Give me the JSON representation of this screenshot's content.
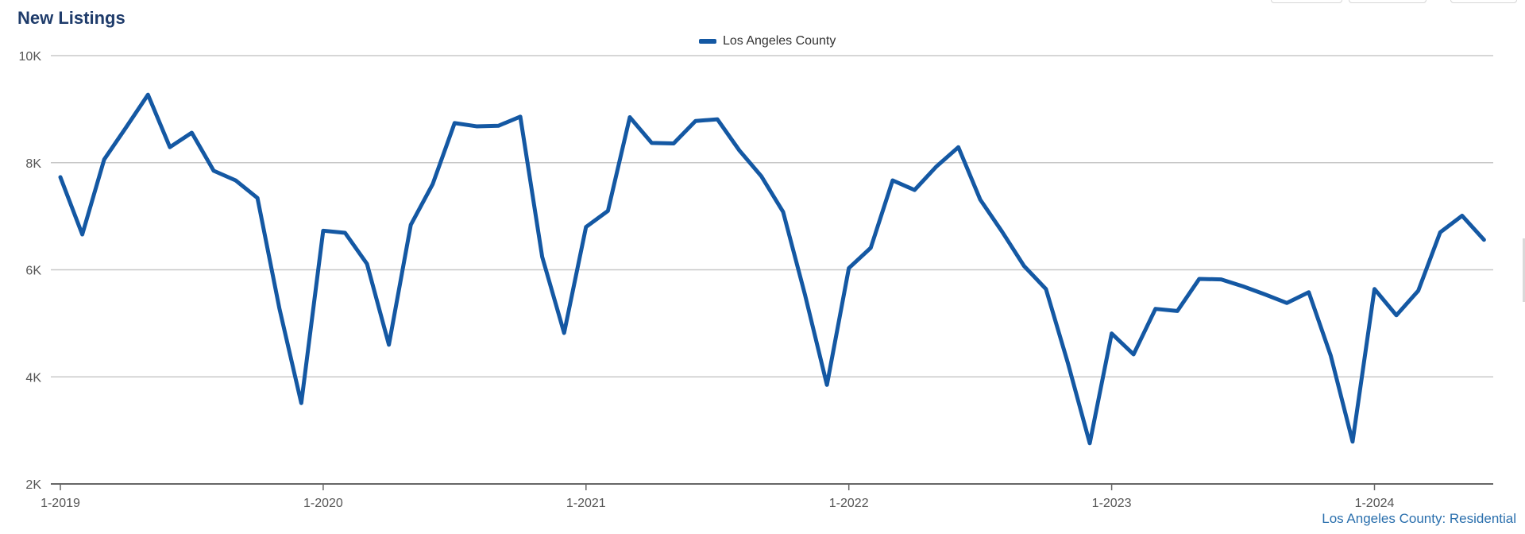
{
  "title": "New Listings",
  "footer_note": "Los Angeles County: Residential",
  "colors": {
    "series": "#1458a3",
    "grid": "#c8c8c8",
    "axis": "#666666",
    "title": "#1f3c6b",
    "footer": "#2a6fad"
  },
  "chart_data": {
    "type": "line",
    "title": "New Listings",
    "xlabel": "",
    "ylabel": "",
    "ylim": [
      2000,
      10000
    ],
    "yticks": [
      {
        "value": 2000,
        "label": "2K"
      },
      {
        "value": 4000,
        "label": "4K"
      },
      {
        "value": 6000,
        "label": "6K"
      },
      {
        "value": 8000,
        "label": "8K"
      },
      {
        "value": 10000,
        "label": "10K"
      }
    ],
    "xticks": [
      {
        "index": 0,
        "label": "1-2019"
      },
      {
        "index": 12,
        "label": "1-2020"
      },
      {
        "index": 24,
        "label": "1-2021"
      },
      {
        "index": 36,
        "label": "1-2022"
      },
      {
        "index": 48,
        "label": "1-2023"
      },
      {
        "index": 60,
        "label": "1-2024"
      }
    ],
    "grid": true,
    "legend_position": "top-center",
    "series": [
      {
        "name": "Los Angeles County",
        "start": "1-2019",
        "values": [
          7730,
          6660,
          8060,
          8660,
          9270,
          8290,
          8560,
          7850,
          7670,
          7340,
          5280,
          3510,
          6730,
          6690,
          6110,
          4600,
          6840,
          7600,
          8740,
          8680,
          8690,
          8860,
          6240,
          4820,
          6800,
          7100,
          8850,
          8370,
          8360,
          8780,
          8810,
          8230,
          7750,
          7080,
          5530,
          3850,
          6030,
          6410,
          7670,
          7490,
          7930,
          8290,
          7310,
          6710,
          6070,
          5640,
          4260,
          2760,
          4810,
          4420,
          5270,
          5230,
          5830,
          5820,
          5690,
          5540,
          5380,
          5580,
          4400,
          2790,
          5640,
          5150,
          5610,
          6700,
          7010,
          6560
        ]
      }
    ]
  }
}
